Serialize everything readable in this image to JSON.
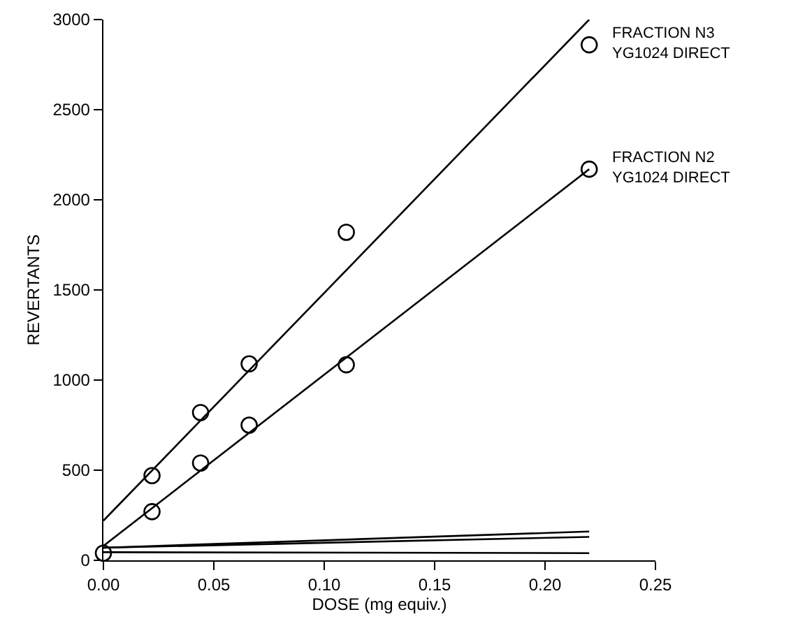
{
  "chart_data": {
    "type": "scatter",
    "xlabel": "DOSE (mg equiv.)",
    "ylabel": "REVERTANTS",
    "xlim": [
      0,
      0.25
    ],
    "xticks": [
      {
        "value": 0,
        "label": "0.00"
      },
      {
        "value": 0.05,
        "label": "0.05"
      },
      {
        "value": 0.1,
        "label": "0.10"
      },
      {
        "value": 0.15,
        "label": "0.15"
      },
      {
        "value": 0.2,
        "label": "0.20"
      },
      {
        "value": 0.25,
        "label": "0.25"
      }
    ],
    "ylim": [
      0,
      3000
    ],
    "yticks": [
      0,
      500,
      1000,
      1500,
      2000,
      2500,
      3000
    ],
    "grid": false,
    "legend": false,
    "series": [
      {
        "name": "FRACTION N3\nYG1024 DIRECT",
        "marker": "circle",
        "color": "#000000",
        "x": [
          0.022,
          0.044,
          0.066,
          0.11,
          0.22
        ],
        "values": [
          470,
          820,
          1090,
          1820,
          2860
        ]
      },
      {
        "name": "FRACTION N2\nYG1024 DIRECT",
        "marker": "circle",
        "color": "#000000",
        "x": [
          0.022,
          0.044,
          0.066,
          0.11,
          0.22
        ],
        "values": [
          270,
          540,
          750,
          1085,
          2170
        ]
      },
      {
        "marker": "circle",
        "color": "#000000",
        "x": [
          0
        ],
        "values": [
          40
        ]
      },
      {
        "type": "line",
        "color": "#000000",
        "x": [
          0,
          0.22
        ],
        "values": [
          220,
          3000
        ]
      },
      {
        "type": "line",
        "color": "#000000",
        "x": [
          0,
          0.22
        ],
        "values": [
          80,
          2170
        ]
      },
      {
        "type": "line",
        "color": "#000000",
        "x": [
          0,
          0.22
        ],
        "values": [
          70,
          160
        ]
      },
      {
        "type": "line",
        "color": "#000000",
        "x": [
          0,
          0.22
        ],
        "values": [
          70,
          130
        ]
      },
      {
        "type": "line",
        "color": "#000000",
        "x": [
          0,
          0.22
        ],
        "values": [
          45,
          40
        ]
      }
    ]
  }
}
